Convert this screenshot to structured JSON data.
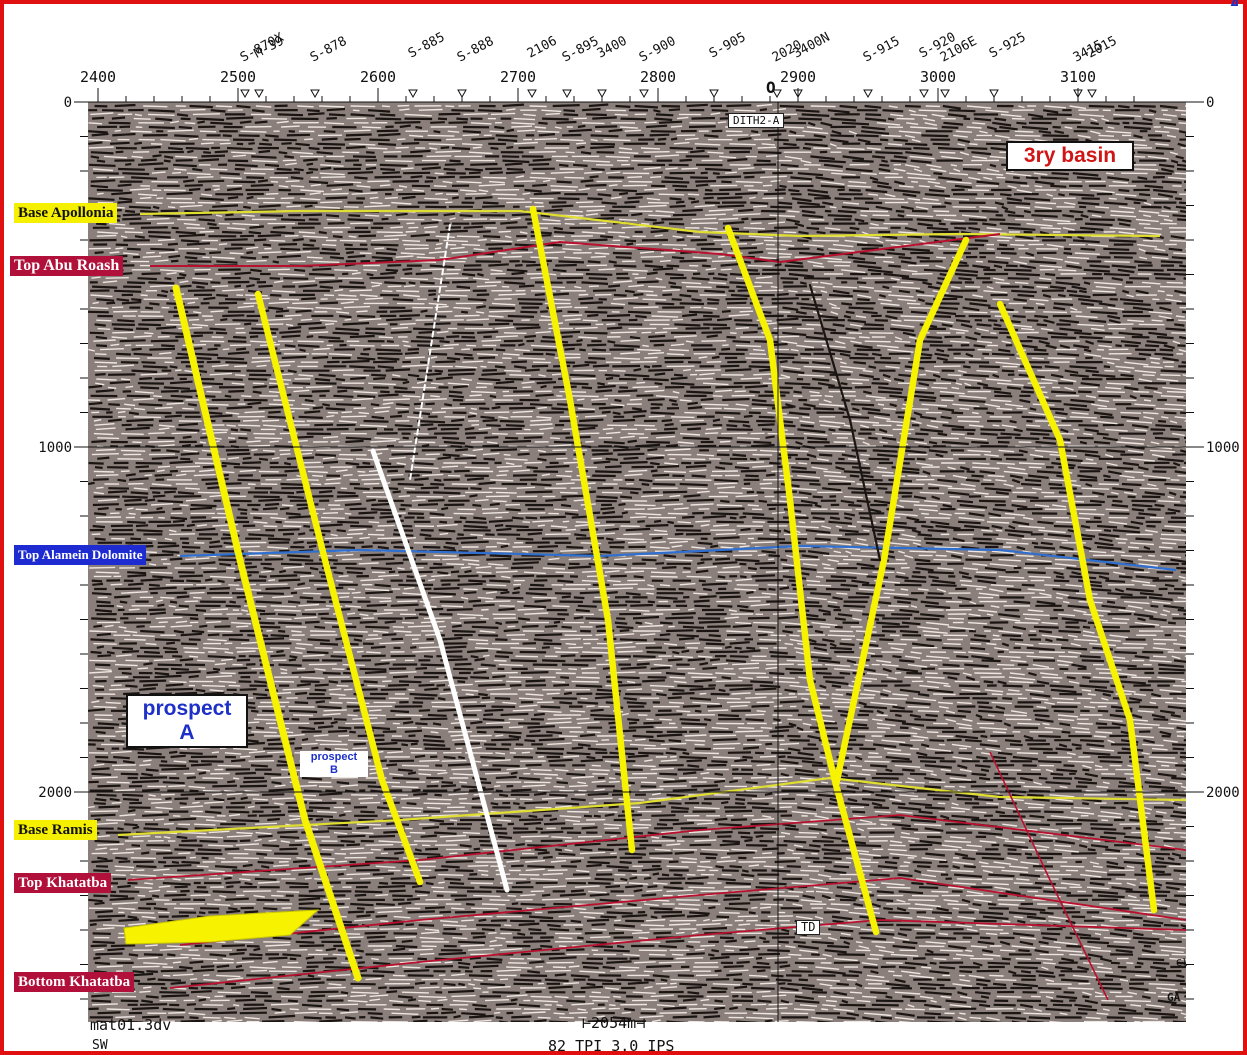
{
  "title": "",
  "shotpoints": [
    {
      "label": "2400",
      "value": 2400
    },
    {
      "label": "2500",
      "value": 2500
    },
    {
      "label": "2600",
      "value": 2600
    },
    {
      "label": "2700",
      "value": 2700
    },
    {
      "label": "2800",
      "value": 2800
    },
    {
      "label": "2900",
      "value": 2900
    },
    {
      "label": "3000",
      "value": 3000
    },
    {
      "label": "3100",
      "value": 3100
    }
  ],
  "wells": [
    {
      "label": "S-870X",
      "sp": 2505
    },
    {
      "label": "M-39",
      "sp": 2515
    },
    {
      "label": "S-878",
      "sp": 2555
    },
    {
      "label": "S-885",
      "sp": 2625
    },
    {
      "label": "S-888",
      "sp": 2660
    },
    {
      "label": "2106",
      "sp": 2710
    },
    {
      "label": "S-895",
      "sp": 2735
    },
    {
      "label": "3400",
      "sp": 2760
    },
    {
      "label": "S-900",
      "sp": 2790
    },
    {
      "label": "S-905",
      "sp": 2840
    },
    {
      "label": "2020",
      "sp": 2885
    },
    {
      "label": "3400N",
      "sp": 2900
    },
    {
      "label": "S-915",
      "sp": 2950
    },
    {
      "label": "S-920",
      "sp": 2990
    },
    {
      "label": "2106E",
      "sp": 3005
    },
    {
      "label": "S-925",
      "sp": 3040
    },
    {
      "label": "3415",
      "sp": 3100
    },
    {
      "label": "2015",
      "sp": 3110
    }
  ],
  "time_axis": {
    "left_labels": [
      "0",
      "1000",
      "2000"
    ],
    "right_labels": [
      "0",
      "1000",
      "2000"
    ],
    "values": [
      0,
      1000,
      2000
    ]
  },
  "horizons": {
    "base_apollonia": "Base Apollonia",
    "top_abu_roash": "Top Abu Roash",
    "top_alamein": "Top Alamein Dolomite",
    "base_ramis": "Base Ramis",
    "top_khatatba": "Top Khatatba",
    "bottom_khatatba": "Bottom Khatatba"
  },
  "annotations": {
    "prospect_a_line1": "prospect",
    "prospect_a_line2": "A",
    "prospect_b_line1": "prospect",
    "prospect_b_line2": "B",
    "basin": "3ry basin",
    "well_name": "DITH2-A",
    "td": "TD",
    "well_marker": "O",
    "right_tag_1": "Cl",
    "right_tag_2": "GA",
    "file": "mat01.3dv",
    "direction": "SW",
    "scale": "2054m",
    "scale_info": "82 TPI   3.0 IPS",
    "corner": "A"
  },
  "colors": {
    "frame": "#e01010",
    "fault": "#f7f200",
    "horizon_yellow": "#e0de30",
    "horizon_red": "#b8102e",
    "horizon_blue": "#2f6fd0"
  }
}
